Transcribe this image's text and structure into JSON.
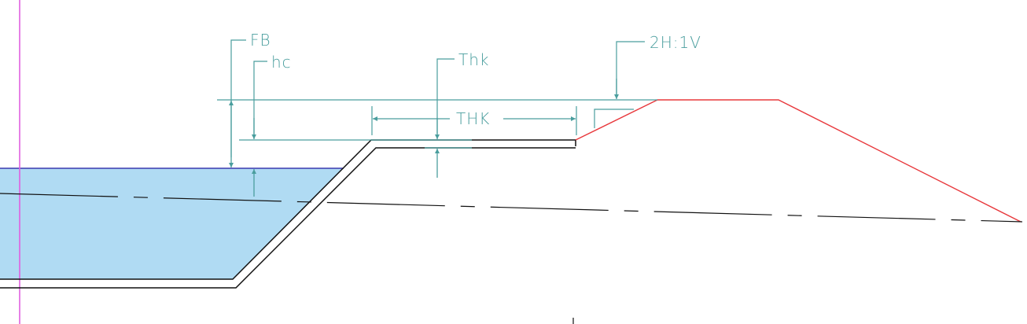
{
  "labels": {
    "freeboard": "FB",
    "critical_depth": "hc",
    "lining_thickness": "Thk",
    "overall_thickness": "THK",
    "slope": "2H:1V"
  },
  "colors": {
    "water_fill": "#b0dbf3",
    "water_surface": "#3a3ab0",
    "dimension": "#4a9e9e",
    "channel_outline": "#111111",
    "berm": "#e8383c",
    "reference_line": "#e060e0",
    "ground_line": "#111111",
    "background": "#ffffff"
  }
}
